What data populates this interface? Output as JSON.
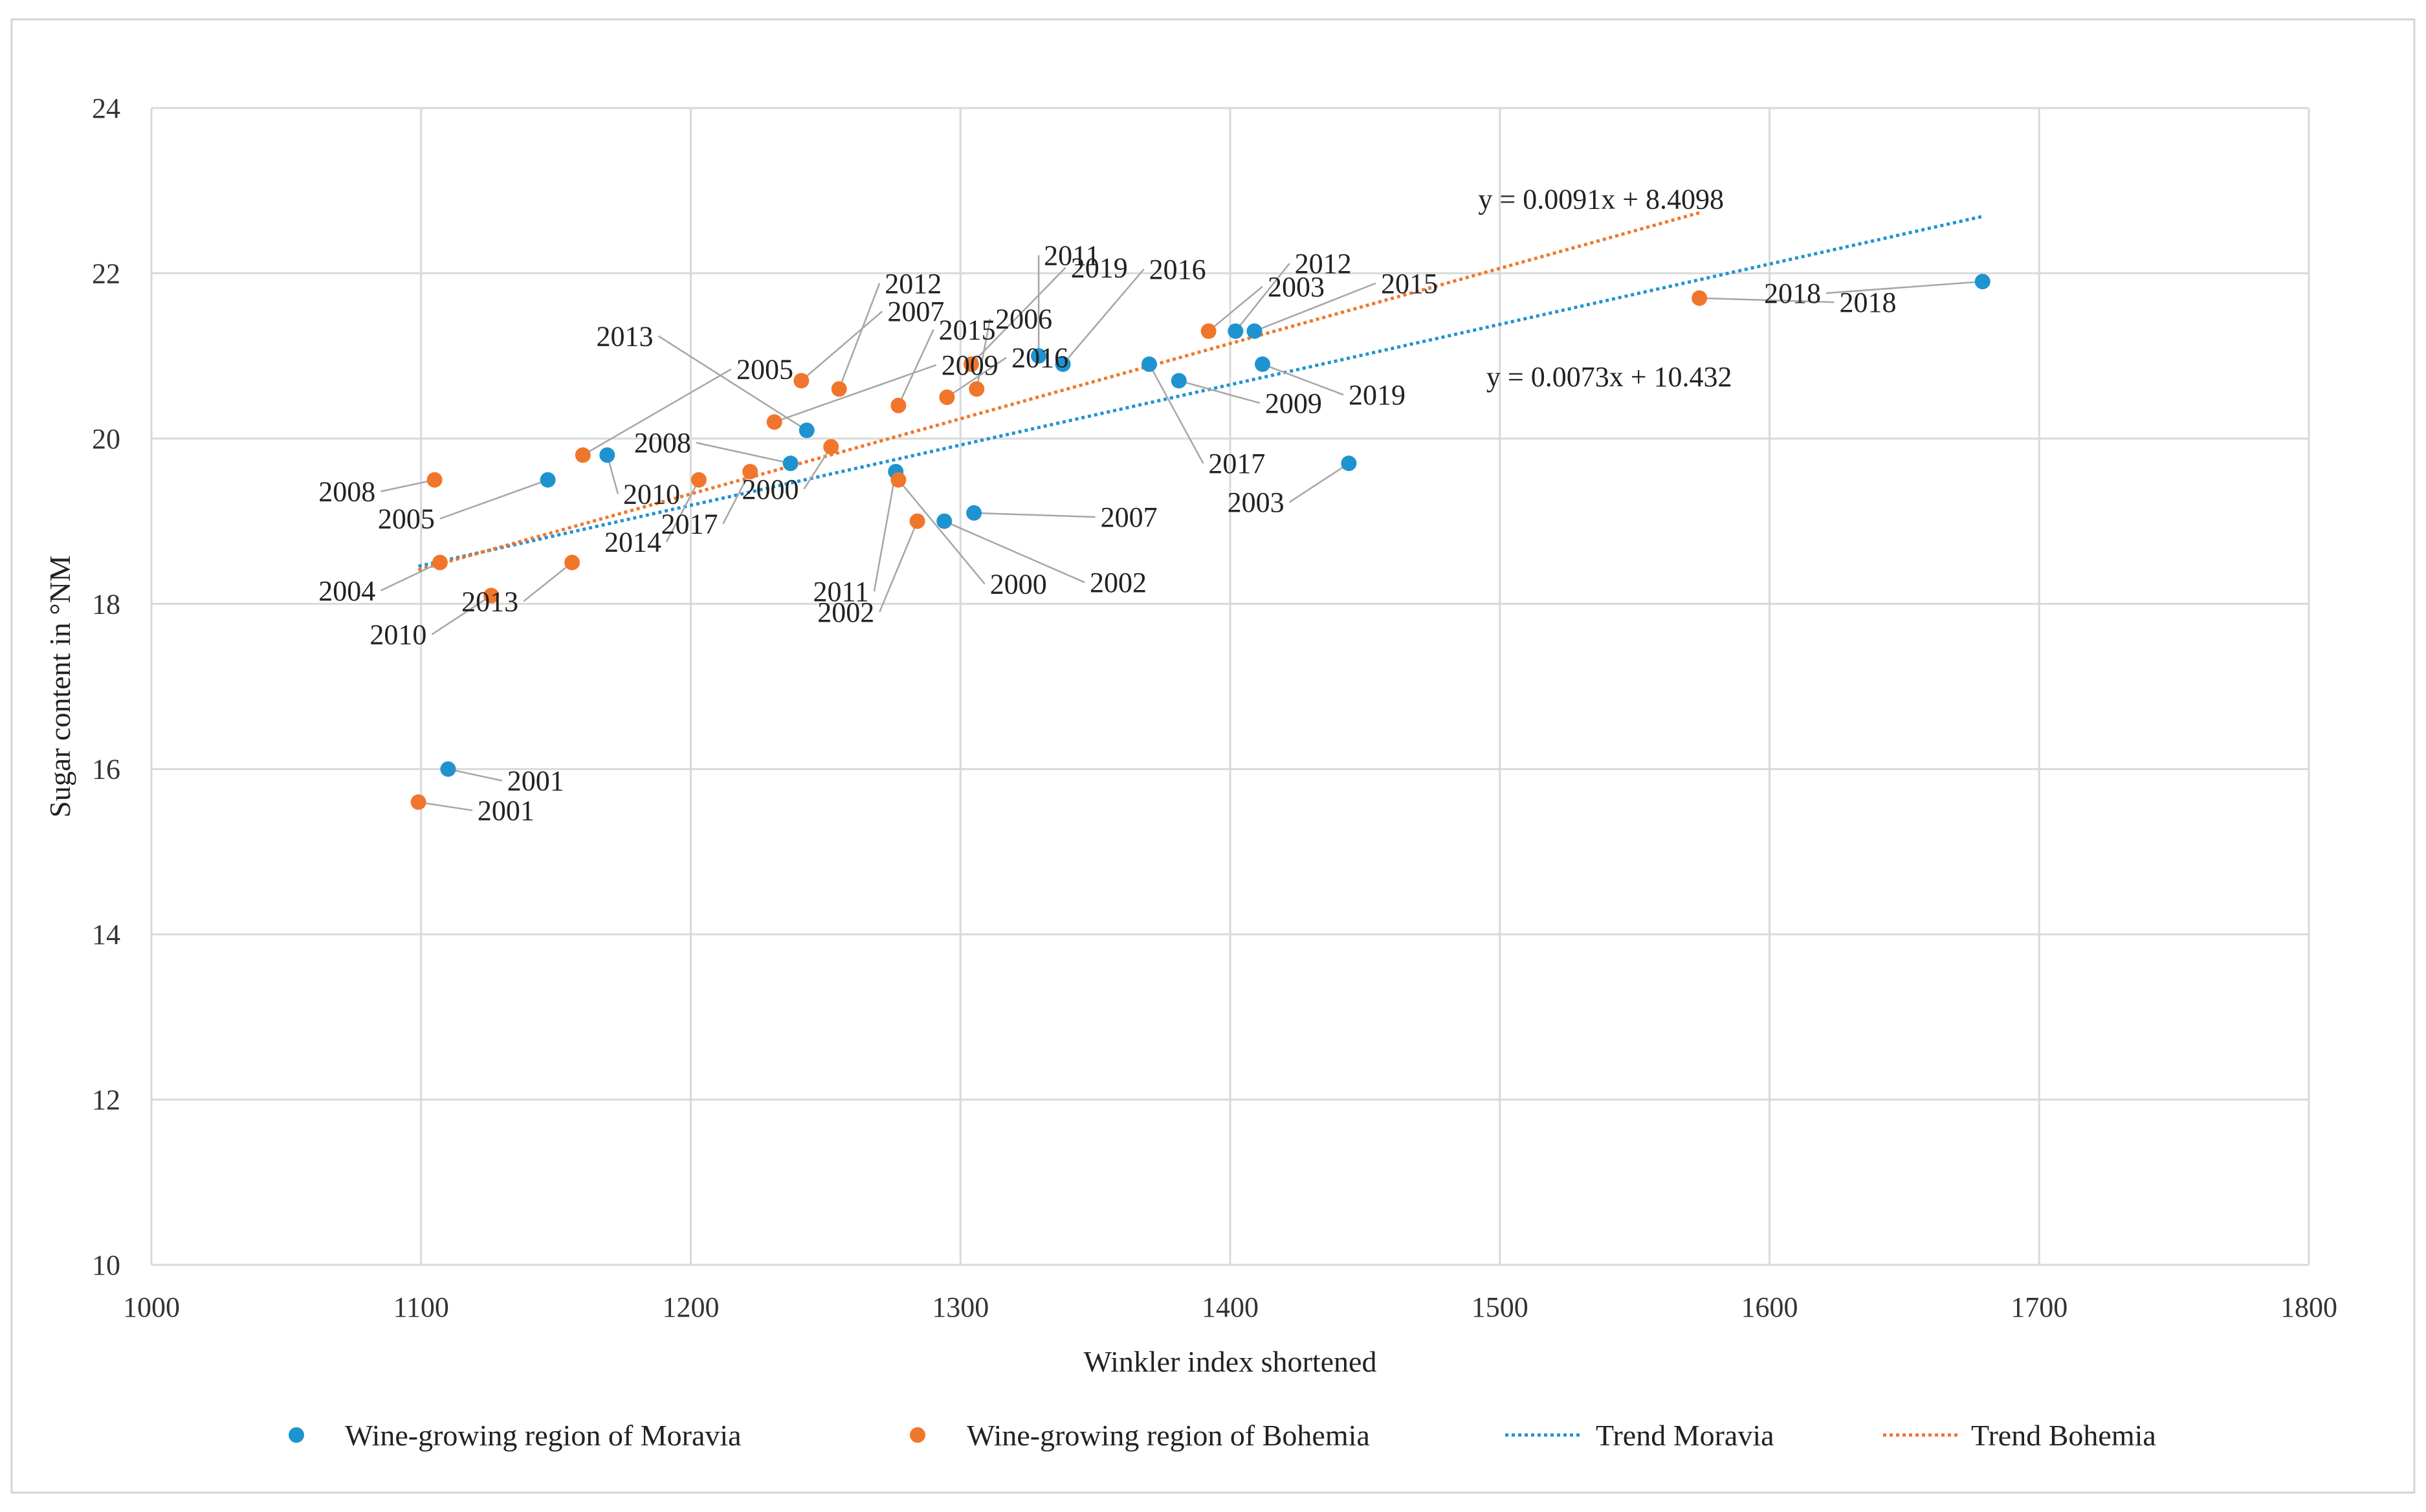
{
  "chart_data": {
    "type": "scatter",
    "title": "",
    "xlabel": "Winkler index shortened",
    "ylabel": "Sugar content in °NM",
    "xlim": [
      1000,
      1800
    ],
    "ylim": [
      10,
      24
    ],
    "xticks": [
      1000,
      1100,
      1200,
      1300,
      1400,
      1500,
      1600,
      1700,
      1800
    ],
    "yticks": [
      10,
      12,
      14,
      16,
      18,
      20,
      22,
      24
    ],
    "grid": true,
    "legend_position": "bottom",
    "series": [
      {
        "name": "Wine-growing region of Moravia",
        "color": "#1f93d0",
        "points": [
          {
            "x": 1110,
            "y": 16.0,
            "label": "2001",
            "ldx": 20,
            "ldy": -14
          },
          {
            "x": 1147,
            "y": 19.5,
            "label": "2005",
            "ldx": -40,
            "ldy": -47
          },
          {
            "x": 1169,
            "y": 19.8,
            "label": "2010",
            "ldx": 4,
            "ldy": -47
          },
          {
            "x": 1237,
            "y": 19.7,
            "label": "2008",
            "ldx": -35,
            "ldy": 25
          },
          {
            "x": 1243,
            "y": 20.1,
            "label": "2013",
            "ldx": -55,
            "ldy": 114
          },
          {
            "x": 1276,
            "y": 19.6,
            "label": "2011",
            "ldx": -8,
            "ldy": -145
          },
          {
            "x": 1294,
            "y": 19.0,
            "label": "2002",
            "ldx": 52,
            "ldy": -74
          },
          {
            "x": 1305,
            "y": 19.1,
            "label": "2007",
            "ldx": 45,
            "ldy": -5
          },
          {
            "x": 1329,
            "y": 21.0,
            "label": "2011",
            "ldx": 0,
            "ldy": 122
          },
          {
            "x": 1338,
            "y": 20.9,
            "label": "2016",
            "ldx": 30,
            "ldy": 115
          },
          {
            "x": 1370,
            "y": 20.9,
            "label": "2017",
            "ldx": 20,
            "ldy": -120
          },
          {
            "x": 1381,
            "y": 20.7,
            "label": "2009",
            "ldx": 30,
            "ldy": -27
          },
          {
            "x": 1402,
            "y": 21.3,
            "label": "2012",
            "ldx": 20,
            "ldy": 82
          },
          {
            "x": 1409,
            "y": 21.3,
            "label": "2015",
            "ldx": 45,
            "ldy": 58
          },
          {
            "x": 1412,
            "y": 20.9,
            "label": "2019",
            "ldx": 30,
            "ldy": -37
          },
          {
            "x": 1444,
            "y": 19.7,
            "label": "2003",
            "ldx": -22,
            "ldy": -47
          },
          {
            "x": 1679,
            "y": 21.9,
            "label": "2018",
            "ldx": -58,
            "ldy": -14
          }
        ]
      },
      {
        "name": "Wine-growing region of Bohemia",
        "color": "#f0762b",
        "points": [
          {
            "x": 1099,
            "y": 15.6,
            "label": "2001",
            "ldx": 20,
            "ldy": -10
          },
          {
            "x": 1105,
            "y": 19.5,
            "label": "2008",
            "ldx": -20,
            "ldy": -14
          },
          {
            "x": 1107,
            "y": 18.5,
            "label": "2004",
            "ldx": -22,
            "ldy": -34
          },
          {
            "x": 1126,
            "y": 18.1,
            "label": "2010",
            "ldx": -22,
            "ldy": -47
          },
          {
            "x": 1156,
            "y": 18.5,
            "label": "2013",
            "ldx": -18,
            "ldy": -47
          },
          {
            "x": 1160,
            "y": 19.8,
            "label": "2005",
            "ldx": 55,
            "ldy": 104
          },
          {
            "x": 1203,
            "y": 19.5,
            "label": "2014",
            "ldx": -12,
            "ldy": -75
          },
          {
            "x": 1222,
            "y": 19.6,
            "label": "2017",
            "ldx": -10,
            "ldy": -63
          },
          {
            "x": 1231,
            "y": 20.2,
            "label": "2009",
            "ldx": 60,
            "ldy": 69
          },
          {
            "x": 1241,
            "y": 20.7,
            "label": "2007",
            "ldx": 30,
            "ldy": 84
          },
          {
            "x": 1252,
            "y": 19.9,
            "label": "2000",
            "ldx": -10,
            "ldy": -51
          },
          {
            "x": 1255,
            "y": 20.6,
            "label": "2012",
            "ldx": 15,
            "ldy": 128
          },
          {
            "x": 1277,
            "y": 20.4,
            "label": "2015",
            "ldx": 13,
            "ldy": 92
          },
          {
            "x": 1277,
            "y": 19.5,
            "label": "2000",
            "ldx": 32,
            "ldy": -126
          },
          {
            "x": 1284,
            "y": 19.0,
            "label": "2002",
            "ldx": -14,
            "ldy": -110
          },
          {
            "x": 1295,
            "y": 20.5,
            "label": "2016",
            "ldx": 22,
            "ldy": 48
          },
          {
            "x": 1304,
            "y": 20.9,
            "label": "2019",
            "ldx": 35,
            "ldy": 117
          },
          {
            "x": 1306,
            "y": 20.6,
            "label": "2006",
            "ldx": 5,
            "ldy": 85
          },
          {
            "x": 1392,
            "y": 21.3,
            "label": "2003",
            "ldx": 20,
            "ldy": 54
          },
          {
            "x": 1574,
            "y": 21.7,
            "label": "2018",
            "ldx": 50,
            "ldy": -5
          }
        ]
      }
    ],
    "trendlines": [
      {
        "name": "Trend Moravia",
        "color": "#1f93d0",
        "slope": 0.0073,
        "intercept": 10.432,
        "x_range": [
          1099,
          1679
        ],
        "equation": "y = 0.0073x + 10.432",
        "eq_x": 1495,
        "eq_y": 20.75
      },
      {
        "name": "Trend Bohemia",
        "color": "#f0762b",
        "slope": 0.0091,
        "intercept": 8.4098,
        "x_range": [
          1099,
          1574
        ],
        "equation": "y = 0.0091x + 8.4098",
        "eq_x": 1492,
        "eq_y": 22.9
      }
    ]
  },
  "legend": [
    {
      "label": "Wine-growing region of Moravia",
      "kind": "marker",
      "color": "#1f93d0"
    },
    {
      "label": "Wine-growing region of Bohemia",
      "kind": "marker",
      "color": "#f0762b"
    },
    {
      "label": "Trend Moravia",
      "kind": "line",
      "color": "#1f93d0"
    },
    {
      "label": "Trend Bohemia",
      "kind": "line",
      "color": "#f0762b"
    }
  ]
}
